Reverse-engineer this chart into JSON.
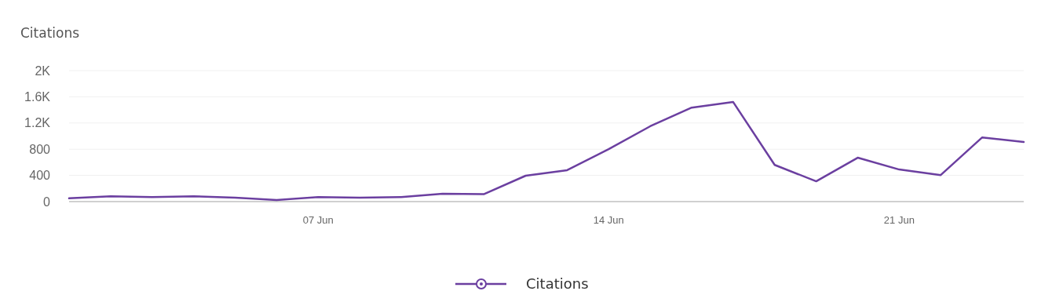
{
  "chart_data": {
    "type": "line",
    "title": "Citations",
    "x": [
      "--06-01",
      "--06-02",
      "--06-03",
      "--06-04",
      "--06-05",
      "--06-06",
      "--06-07",
      "--06-08",
      "--06-09",
      "--06-10",
      "--06-11",
      "--06-12",
      "--06-13",
      "--06-14",
      "--06-15",
      "--06-16",
      "--06-17",
      "--06-18",
      "--06-19",
      "--06-20",
      "--06-21",
      "--06-22",
      "--06-23",
      "--06-24"
    ],
    "series": [
      {
        "name": "Citations",
        "color": "#6b3fa0",
        "values": [
          50,
          80,
          70,
          80,
          60,
          25,
          70,
          60,
          70,
          120,
          115,
          395,
          480,
          800,
          1150,
          1435,
          1520,
          560,
          310,
          670,
          490,
          405,
          980,
          910
        ]
      }
    ],
    "xlim": [
      "--06-01",
      "--06-24"
    ],
    "xticks": [
      {
        "value": "--06-07",
        "label": "07 Jun"
      },
      {
        "value": "--06-14",
        "label": "14 Jun"
      },
      {
        "value": "--06-21",
        "label": "21 Jun"
      }
    ],
    "ylim": [
      0,
      2000
    ],
    "yticks": [
      {
        "value": 0,
        "label": "0"
      },
      {
        "value": 400,
        "label": "400"
      },
      {
        "value": 800,
        "label": "800"
      },
      {
        "value": 1200,
        "label": "1.2K"
      },
      {
        "value": 1600,
        "label": "1.6K"
      },
      {
        "value": 2000,
        "label": "2K"
      }
    ],
    "grid": "y",
    "legend": "bottom",
    "marker": "none",
    "line_style": "solid"
  }
}
